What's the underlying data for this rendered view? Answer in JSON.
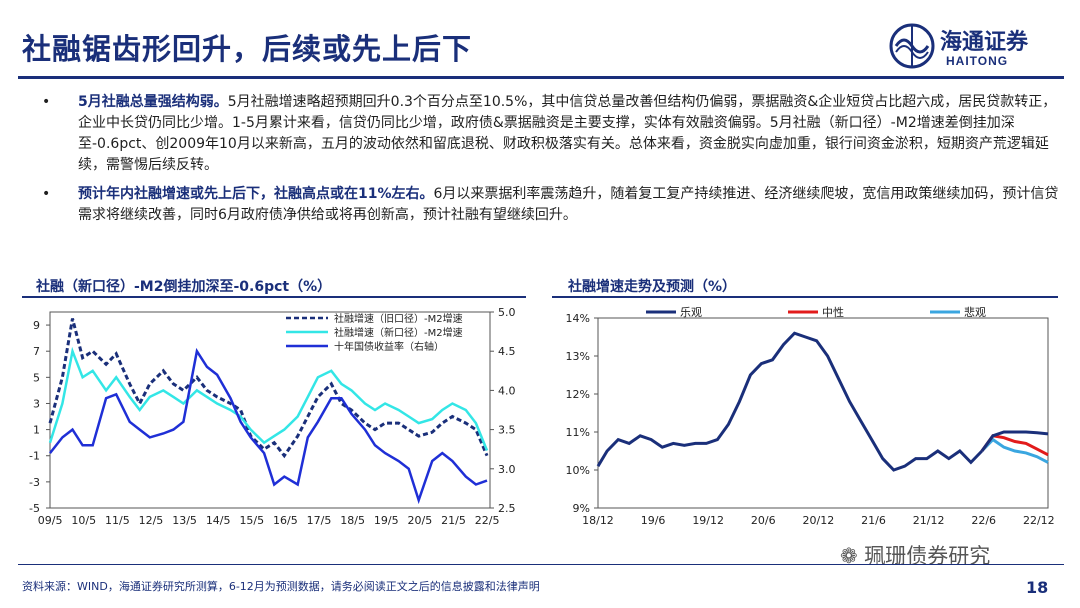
{
  "slide": {
    "title": "社融锯齿形回升，后续或先上后下",
    "logo_cn": "海通证券",
    "logo_en": "HAITONG",
    "page_number": "18",
    "watermark": "珮珊债券研究",
    "footnote": "资料来源：WIND，海通证券研究所测算，6-12月为预测数据，请务必阅读正文之后的信息披露和法律声明"
  },
  "bullets": [
    {
      "bullet": "•",
      "heading": "5月社融总量强结构弱。",
      "body": "5月社融增速略超预期回升0.3个百分点至10.5%，其中信贷总量改善但结构仍偏弱，票据融资&企业短贷占比超六成，居民贷款转正，企业中长贷仍同比少增。1-5月累计来看，信贷仍同比少增，政府债&票据融资是主要支撑，实体有效融资偏弱。5月社融（新口径）-M2增速差倒挂加深至-0.6pct、创2009年10月以来新高，五月的波动依然和留底退税、财政积极落实有关。总体来看，资金脱实向虚加重，银行间资金淤积，短期资产荒逻辑延续，需警惕后续反转。"
    },
    {
      "bullet": "•",
      "heading": "预计年内社融增速或先上后下，社融高点或在11%左右。",
      "body": "6月以来票据利率震荡趋升，随着复工复产持续推进、经济继续爬坡，宽信用政策继续加码，预计信贷需求将继续改善，同时6月政府债净供给或将再创新高，预计社融有望继续回升。"
    }
  ],
  "colors": {
    "navy": "#1a2f7a",
    "dashed_series": "#1a2f7a",
    "cyan_series": "#33e6e6",
    "blue_series": "#1f2fd6",
    "optimistic": "#1a2f7a",
    "neutral": "#e21b1b",
    "pessimistic": "#3aa6e0"
  },
  "chart_data": [
    {
      "type": "line",
      "title": "社融（新口径）-M2倒挂加深至-0.6pct（%）",
      "x_ticks": [
        "09/5",
        "10/5",
        "11/5",
        "12/5",
        "13/5",
        "14/5",
        "15/5",
        "16/5",
        "17/5",
        "18/5",
        "19/5",
        "20/5",
        "21/5",
        "22/5"
      ],
      "y_left": {
        "ticks": [
          "9",
          "7",
          "5",
          "3",
          "1",
          "-1",
          "-3",
          "-5"
        ],
        "min": -5,
        "max": 10
      },
      "y_right": {
        "ticks": [
          "5.0",
          "4.5",
          "4.0",
          "3.5",
          "3.0",
          "2.5"
        ],
        "min": 2.5,
        "max": 5.0
      },
      "legend_position": "top-right",
      "x": [
        2009.33,
        2009.7,
        2010.0,
        2010.3,
        2010.6,
        2011.0,
        2011.3,
        2011.7,
        2012.0,
        2012.3,
        2012.7,
        2013.0,
        2013.3,
        2013.7,
        2014.0,
        2014.3,
        2014.7,
        2015.0,
        2015.3,
        2015.7,
        2016.0,
        2016.3,
        2016.7,
        2017.0,
        2017.3,
        2017.7,
        2018.0,
        2018.3,
        2018.7,
        2019.0,
        2019.3,
        2019.7,
        2020.0,
        2020.3,
        2020.7,
        2021.0,
        2021.3,
        2021.7,
        2022.0,
        2022.33
      ],
      "series": [
        {
          "name": "社融增速（旧口径）-M2增速",
          "axis": "left",
          "style": "dashed",
          "values": [
            1.5,
            5.0,
            9.5,
            6.5,
            7.0,
            6.0,
            6.8,
            4.5,
            3.0,
            4.5,
            5.5,
            4.5,
            4.0,
            5.0,
            4.0,
            3.5,
            3.0,
            2.5,
            0.5,
            -0.5,
            0.0,
            -1.0,
            0.5,
            2.0,
            3.5,
            4.5,
            3.0,
            2.5,
            1.5,
            1.0,
            1.5,
            1.5,
            1.0,
            0.5,
            0.8,
            1.5,
            2.0,
            1.5,
            1.0,
            -1.0
          ]
        },
        {
          "name": "社融增速（新口径）-M2增速",
          "axis": "left",
          "style": "solid",
          "values": [
            0.0,
            3.0,
            7.0,
            5.0,
            5.5,
            4.0,
            5.0,
            3.5,
            2.5,
            3.5,
            4.0,
            3.5,
            3.0,
            4.0,
            3.5,
            3.0,
            2.5,
            2.0,
            1.0,
            0.0,
            0.5,
            1.0,
            2.0,
            3.5,
            5.0,
            5.5,
            4.5,
            4.0,
            3.0,
            2.5,
            3.0,
            2.5,
            2.0,
            1.5,
            1.8,
            2.5,
            3.0,
            2.5,
            1.5,
            -0.6
          ]
        },
        {
          "name": "十年国债收益率（右轴）",
          "axis": "right",
          "style": "solid",
          "values": [
            3.2,
            3.4,
            3.5,
            3.3,
            3.3,
            3.9,
            3.95,
            3.6,
            3.5,
            3.4,
            3.45,
            3.5,
            3.6,
            4.5,
            4.3,
            4.2,
            3.9,
            3.6,
            3.4,
            3.2,
            2.8,
            2.9,
            2.8,
            3.4,
            3.6,
            3.9,
            3.9,
            3.7,
            3.5,
            3.3,
            3.2,
            3.1,
            3.0,
            2.6,
            3.1,
            3.2,
            3.1,
            2.9,
            2.8,
            2.85
          ]
        }
      ]
    },
    {
      "type": "line",
      "title": "社融增速走势及预测（%）",
      "x_ticks": [
        "18/12",
        "19/6",
        "19/12",
        "20/6",
        "20/12",
        "21/6",
        "21/12",
        "22/6",
        "22/12"
      ],
      "y_ticks": [
        "14%",
        "13%",
        "12%",
        "11%",
        "10%",
        "9%"
      ],
      "ylim": [
        9,
        14
      ],
      "legend_position": "top",
      "x": [
        2018.917,
        2019.0,
        2019.1,
        2019.2,
        2019.3,
        2019.4,
        2019.5,
        2019.6,
        2019.7,
        2019.8,
        2019.9,
        2020.0,
        2020.1,
        2020.2,
        2020.3,
        2020.4,
        2020.5,
        2020.6,
        2020.7,
        2020.8,
        2020.9,
        2021.0,
        2021.1,
        2021.2,
        2021.3,
        2021.4,
        2021.5,
        2021.6,
        2021.7,
        2021.8,
        2021.9,
        2022.0,
        2022.1,
        2022.2,
        2022.3,
        2022.4
      ],
      "series": [
        {
          "name": "乐观",
          "values": [
            10.1,
            10.5,
            10.8,
            10.7,
            10.9,
            10.8,
            10.6,
            10.7,
            10.65,
            10.7,
            10.7,
            10.8,
            11.2,
            11.8,
            12.5,
            12.8,
            12.9,
            13.3,
            13.6,
            13.5,
            13.4,
            13.0,
            12.4,
            11.8,
            11.3,
            10.8,
            10.3,
            10.0,
            10.1,
            10.3,
            10.3,
            10.5,
            10.3,
            10.5,
            10.2,
            10.5
          ]
        },
        {
          "name": "中性",
          "values": [
            null,
            null,
            null,
            null,
            null,
            null,
            null,
            null,
            null,
            null,
            null,
            null,
            null,
            null,
            null,
            null,
            null,
            null,
            null,
            null,
            null,
            null,
            null,
            null,
            null,
            null,
            null,
            null,
            null,
            null,
            null,
            null,
            null,
            null,
            null,
            null
          ]
        },
        {
          "name": "悲观",
          "values": [
            null,
            null,
            null,
            null,
            null,
            null,
            null,
            null,
            null,
            null,
            null,
            null,
            null,
            null,
            null,
            null,
            null,
            null,
            null,
            null,
            null,
            null,
            null,
            null,
            null,
            null,
            null,
            null,
            null,
            null,
            null,
            null,
            null,
            null,
            null,
            null
          ]
        }
      ],
      "forecast": {
        "x": [
          2022.4,
          2022.5,
          2022.6,
          2022.7,
          2022.8,
          2022.9,
          2023.0
        ],
        "乐观": [
          10.5,
          10.9,
          11.0,
          11.0,
          11.0,
          10.98,
          10.95
        ],
        "中性": [
          10.5,
          10.9,
          10.85,
          10.75,
          10.7,
          10.55,
          10.4
        ],
        "悲观": [
          10.5,
          10.8,
          10.6,
          10.5,
          10.45,
          10.35,
          10.2
        ]
      }
    }
  ]
}
